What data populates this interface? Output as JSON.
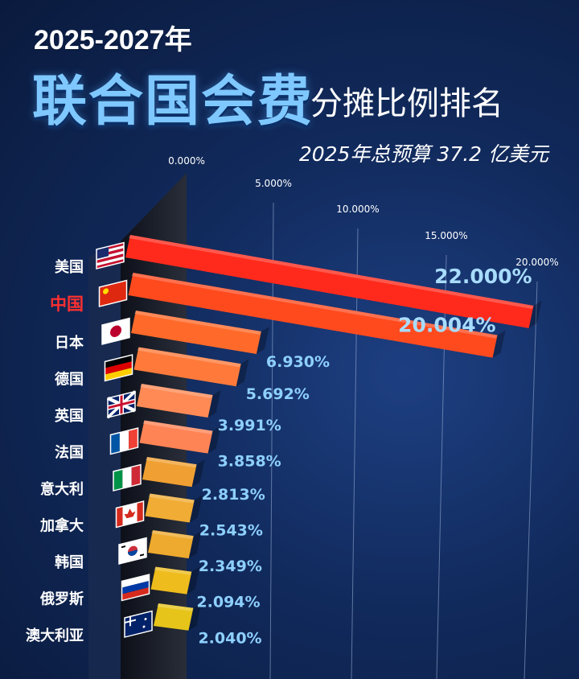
{
  "header": {
    "years": "2025-2027年",
    "main": "联合国会费",
    "sub": "分摊比例排名",
    "budget": "2025年总预算 37.2 亿美元"
  },
  "chart_data": {
    "type": "bar",
    "orientation": "horizontal-3d",
    "xlim": [
      0,
      22
    ],
    "ticks": [
      "0.000%",
      "5.000%",
      "10.000%",
      "15.000%",
      "20.000%"
    ],
    "tick_values": [
      0,
      5,
      10,
      15,
      20
    ],
    "categories": [
      "美国",
      "中国",
      "日本",
      "德国",
      "英国",
      "法国",
      "意大利",
      "加拿大",
      "韩国",
      "俄罗斯",
      "澳大利亚"
    ],
    "values": [
      22.0,
      20.004,
      6.93,
      5.692,
      3.991,
      3.858,
      2.813,
      2.543,
      2.349,
      2.094,
      2.04
    ],
    "value_labels": [
      "22.000%",
      "20.004%",
      "6.930%",
      "5.692%",
      "3.991%",
      "3.858%",
      "2.813%",
      "2.543%",
      "2.349%",
      "2.094%",
      "2.040%"
    ],
    "highlight": "中国",
    "flags": [
      "usa-flag-icon",
      "china-flag-icon",
      "japan-flag-icon",
      "germany-flag-icon",
      "uk-flag-icon",
      "france-flag-icon",
      "italy-flag-icon",
      "canada-flag-icon",
      "korea-flag-icon",
      "russia-flag-icon",
      "australia-flag-icon"
    ],
    "colors": [
      "#ff2a1c",
      "#ff4a1e",
      "#ff6a2a",
      "#ff7a3a",
      "#ff8a55",
      "#ff8455",
      "#f0a032",
      "#f0ac34",
      "#eeaa2e",
      "#eebc1c",
      "#e6c41a"
    ],
    "grid": true
  }
}
